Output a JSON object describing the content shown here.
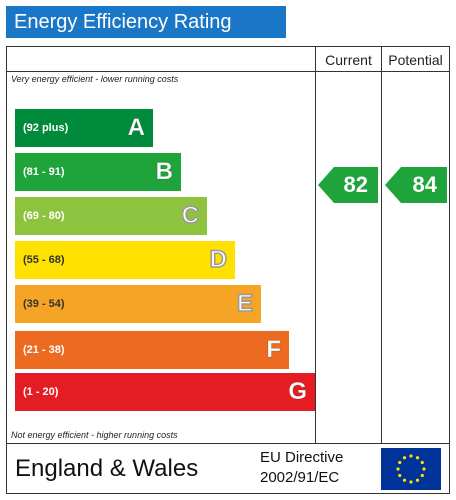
{
  "title": "Energy Efficiency Rating",
  "columns": {
    "current": "Current",
    "potential": "Potential"
  },
  "top_note": "Very energy efficient - lower running costs",
  "bottom_note": "Not energy efficient - higher running costs",
  "bands": [
    {
      "letter": "A",
      "range": "(92 plus)",
      "color": "#008a3c"
    },
    {
      "letter": "B",
      "range": "(81 - 91)",
      "color": "#1fa33b"
    },
    {
      "letter": "C",
      "range": "(69 - 80)",
      "color": "#8dc33f"
    },
    {
      "letter": "D",
      "range": "(55 - 68)",
      "color": "#ffe100"
    },
    {
      "letter": "E",
      "range": "(39 - 54)",
      "color": "#f6a425"
    },
    {
      "letter": "F",
      "range": "(21 - 38)",
      "color": "#ec6b21"
    },
    {
      "letter": "G",
      "range": "(1 - 20)",
      "color": "#e31d23"
    }
  ],
  "current": {
    "value": "82",
    "band": "B",
    "color": "#1fa33b"
  },
  "potential": {
    "value": "84",
    "band": "B",
    "color": "#1fa33b"
  },
  "footer": {
    "region": "England & Wales",
    "directive_line1": "EU Directive",
    "directive_line2": "2002/91/EC"
  },
  "eu_flag": {
    "background": "#003399",
    "stars": "#ffdd00"
  }
}
